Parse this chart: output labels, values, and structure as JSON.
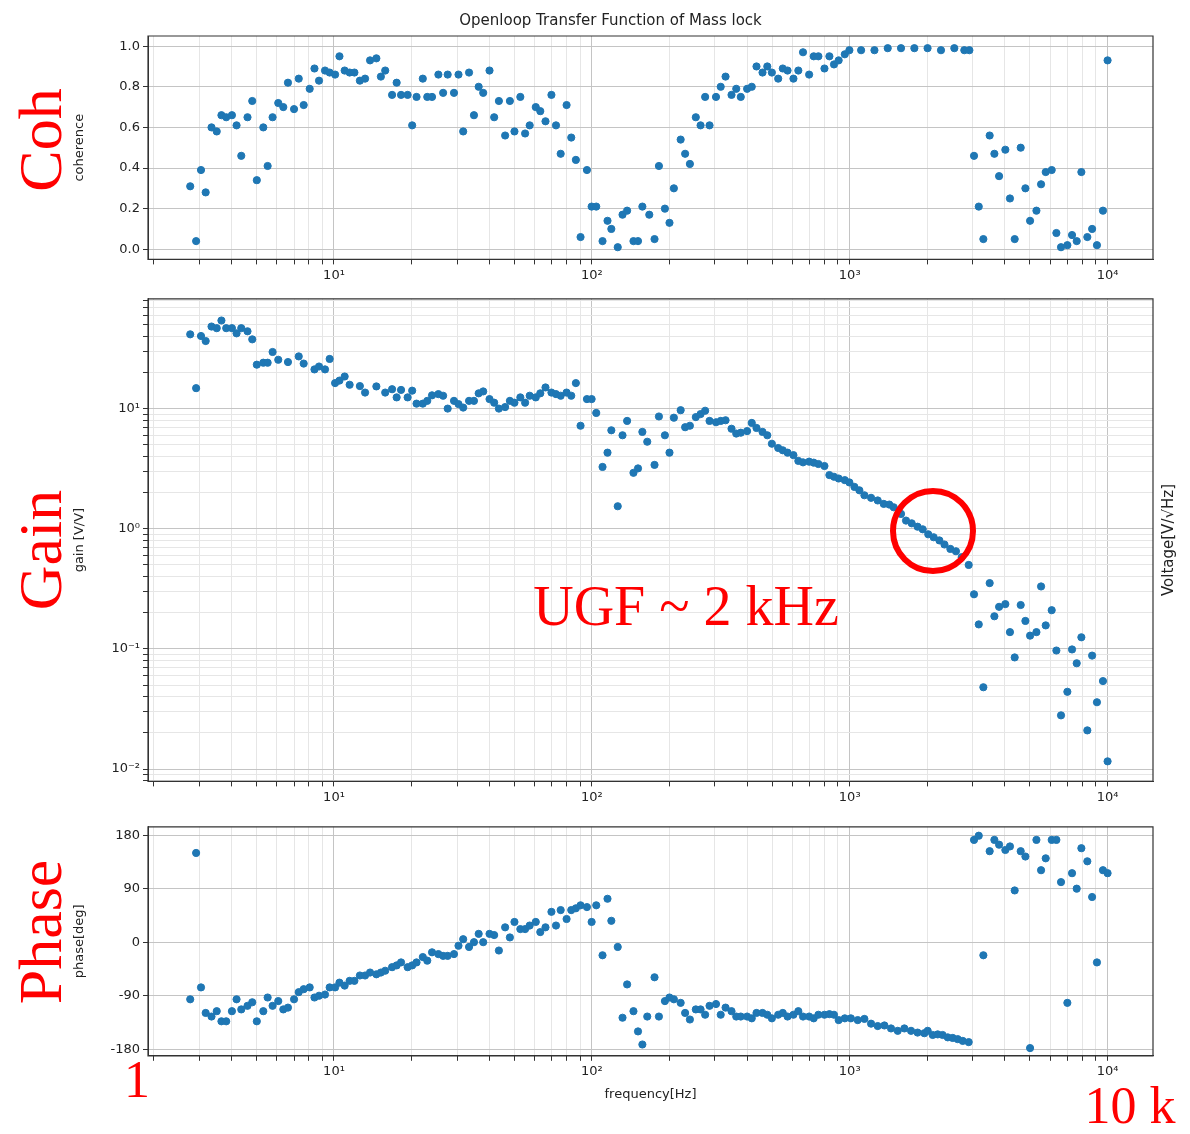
{
  "chart_data": [
    {
      "type": "scatter",
      "title": "Openloop Transfer Function of Mass lock",
      "ylabel": "coherence",
      "annotations": [
        "Coh"
      ],
      "color": "#1f77b4",
      "marker": "circle",
      "log": "x",
      "grid": true,
      "x": [
        2.77,
        2.92,
        3.05,
        3.18,
        3.35,
        3.51,
        3.66,
        3.82,
        4.02,
        4.19,
        4.37,
        4.62,
        4.82,
        5.02,
        5.32,
        5.53,
        5.78,
        6.08,
        6.36,
        6.63,
        7.0,
        7.3,
        7.63,
        8.05,
        8.4,
        8.75,
        9.23,
        9.62,
        10.1,
        10.5,
        11.0,
        11.5,
        12.0,
        12.6,
        13.2,
        13.8,
        14.6,
        15.2,
        15.8,
        16.8,
        17.5,
        18.2,
        19.3,
        20.1,
        20.9,
        22.1,
        23.0,
        24.0,
        25.4,
        26.5,
        27.6,
        29.2,
        30.4,
        31.7,
        33.4,
        34.9,
        36.4,
        37.9,
        40.1,
        41.8,
        43.6,
        46.1,
        48.1,
        50.1,
        52.8,
        55.1,
        57.4,
        60.6,
        63.1,
        66.1,
        69.7,
        72.6,
        75.7,
        79.8,
        83.2,
        86.7,
        90.4,
        95.7,
        99.8,
        104,
        110,
        115,
        119,
        126,
        131.5,
        137,
        145,
        151,
        157,
        167,
        175,
        182,
        192,
        200,
        208,
        221,
        230,
        240,
        253,
        264,
        275,
        286,
        303,
        316,
        330,
        348,
        363,
        378,
        400,
        417,
        435,
        459,
        479,
        499,
        528,
        550,
        574,
        605,
        632,
        659,
        696,
        725,
        756,
        798,
        834,
        869,
        906,
        957,
        997,
        1107,
        1247,
        1404,
        1581,
        1781,
        2004,
        2259,
        2545,
        2782,
        2911,
        3034,
        3165,
        3298,
        3489,
        3639,
        3795,
        4013,
        4182,
        4363,
        4603,
        4800,
        5005,
        5297,
        5521,
        5755,
        6071,
        6330,
        6598,
        6982,
        7280,
        7590,
        7912,
        8345,
        8710,
        9094,
        9595,
        10000
      ],
      "values": [
        0.31,
        0.04,
        0.39,
        0.28,
        0.6,
        0.58,
        0.66,
        0.65,
        0.66,
        0.61,
        0.46,
        0.65,
        0.73,
        0.34,
        0.6,
        0.41,
        0.65,
        0.72,
        0.7,
        0.82,
        0.69,
        0.84,
        0.71,
        0.79,
        0.89,
        0.83,
        0.88,
        0.87,
        0.86,
        0.95,
        0.88,
        0.87,
        0.87,
        0.83,
        0.84,
        0.93,
        0.94,
        0.85,
        0.88,
        0.76,
        0.82,
        0.76,
        0.76,
        0.61,
        0.75,
        0.84,
        0.75,
        0.75,
        0.86,
        0.77,
        0.86,
        0.77,
        0.86,
        0.58,
        0.87,
        0.66,
        0.8,
        0.77,
        0.88,
        0.65,
        0.73,
        0.56,
        0.73,
        0.58,
        0.75,
        0.57,
        0.61,
        0.7,
        0.68,
        0.63,
        0.76,
        0.61,
        0.47,
        0.71,
        0.55,
        0.44,
        0.06,
        0.39,
        0.21,
        0.21,
        0.04,
        0.14,
        0.1,
        0.01,
        0.17,
        0.19,
        0.04,
        0.04,
        0.21,
        0.17,
        0.05,
        0.41,
        0.2,
        0.13,
        0.3,
        0.54,
        0.47,
        0.42,
        0.65,
        0.61,
        0.75,
        0.61,
        0.75,
        0.8,
        0.85,
        0.76,
        0.79,
        0.75,
        0.79,
        0.8,
        0.9,
        0.87,
        0.9,
        0.87,
        0.84,
        0.89,
        0.88,
        0.84,
        0.88,
        0.97,
        0.86,
        0.95,
        0.95,
        0.89,
        0.95,
        0.91,
        0.93,
        0.96,
        0.98,
        0.98,
        0.98,
        0.99,
        0.99,
        0.99,
        0.99,
        0.98,
        0.99,
        0.98,
        0.98,
        0.46,
        0.21,
        0.05,
        0.56,
        0.47,
        0.36,
        0.49,
        0.25,
        0.05,
        0.5,
        0.3,
        0.14,
        0.19,
        0.32,
        0.38,
        0.39,
        0.08,
        0.01,
        0.02,
        0.07,
        0.04,
        0.38,
        0.06,
        0.1,
        0.02,
        0.19,
        0.93
      ],
      "xlim": [
        1.9,
        15000
      ],
      "xticks": [
        {
          "value": 2,
          "label": null
        },
        {
          "value": 3,
          "label": null
        },
        {
          "value": 4,
          "label": null
        },
        {
          "value": 5,
          "label": null
        },
        {
          "value": 6,
          "label": null
        },
        {
          "value": 7,
          "label": null
        },
        {
          "value": 8,
          "label": null
        },
        {
          "value": 9,
          "label": null
        },
        {
          "value": 10,
          "label": "10¹"
        },
        {
          "value": 20,
          "label": null
        },
        {
          "value": 30,
          "label": null
        },
        {
          "value": 40,
          "label": null
        },
        {
          "value": 50,
          "label": null
        },
        {
          "value": 60,
          "label": null
        },
        {
          "value": 70,
          "label": null
        },
        {
          "value": 80,
          "label": null
        },
        {
          "value": 90,
          "label": null
        },
        {
          "value": 100,
          "label": "10²"
        },
        {
          "value": 200,
          "label": null
        },
        {
          "value": 300,
          "label": null
        },
        {
          "value": 400,
          "label": null
        },
        {
          "value": 500,
          "label": null
        },
        {
          "value": 600,
          "label": null
        },
        {
          "value": 700,
          "label": null
        },
        {
          "value": 800,
          "label": null
        },
        {
          "value": 900,
          "label": null
        },
        {
          "value": 1000,
          "label": "10³"
        },
        {
          "value": 2000,
          "label": null
        },
        {
          "value": 3000,
          "label": null
        },
        {
          "value": 4000,
          "label": null
        },
        {
          "value": 5000,
          "label": null
        },
        {
          "value": 6000,
          "label": null
        },
        {
          "value": 7000,
          "label": null
        },
        {
          "value": 8000,
          "label": null
        },
        {
          "value": 9000,
          "label": null
        },
        {
          "value": 10000,
          "label": "10⁴"
        }
      ],
      "ylim": [
        -0.05,
        1.05
      ],
      "yticks": [
        {
          "value": 0,
          "label": "0.0"
        },
        0.2,
        0.4,
        0.6,
        0.8,
        {
          "value": 1,
          "label": "1.0"
        }
      ]
    },
    {
      "type": "scatter",
      "ylabel": "gain [V/V]",
      "y2label": "Voltage[V/√Hz]",
      "annotations": [
        "Gain",
        "UGF ~ 2 kHz"
      ],
      "color": "#1f77b4",
      "marker": "circle",
      "log": "xy",
      "grid": true,
      "x": [
        2.77,
        2.92,
        3.05,
        3.18,
        3.35,
        3.51,
        3.66,
        3.82,
        4.02,
        4.19,
        4.37,
        4.62,
        4.82,
        5.02,
        5.32,
        5.53,
        5.78,
        6.08,
        6.63,
        7.3,
        7.63,
        8.4,
        8.75,
        9.23,
        9.62,
        10.1,
        10.5,
        11.0,
        11.5,
        12.6,
        13.2,
        14.6,
        15.8,
        16.8,
        17.5,
        18.2,
        19.3,
        20.1,
        20.9,
        22.1,
        23.0,
        24.0,
        25.4,
        26.5,
        27.6,
        29.2,
        30.4,
        31.7,
        33.4,
        34.9,
        36.4,
        37.9,
        40.1,
        41.8,
        43.6,
        46.1,
        48.1,
        50.1,
        52.8,
        55.1,
        57.4,
        60.6,
        63.1,
        66.1,
        69.7,
        72.6,
        75.7,
        79.8,
        83.2,
        86.7,
        90.4,
        95.7,
        99.8,
        104,
        110,
        115,
        119,
        126,
        131.5,
        137,
        145,
        151,
        157,
        164,
        175,
        182,
        192,
        200,
        208,
        221,
        230,
        240,
        253,
        264,
        275,
        286,
        303,
        316,
        330,
        348,
        363,
        378,
        400,
        417,
        435,
        459,
        479,
        499,
        528,
        550,
        574,
        605,
        632,
        659,
        696,
        725,
        756,
        798,
        834,
        869,
        906,
        957,
        997,
        1043,
        1090,
        1140,
        1210,
        1284,
        1355,
        1424,
        1481,
        1581,
        1653,
        1739,
        1833,
        1919,
        2016,
        2116,
        2227,
        2330,
        2456,
        2582,
        2718,
        2893,
        3034,
        3165,
        3298,
        3489,
        3639,
        3795,
        4013,
        4182,
        4363,
        4603,
        4800,
        5005,
        5297,
        5521,
        5755,
        6071,
        6330,
        6598,
        6982,
        7280,
        7590,
        7912,
        8345,
        8710,
        9094,
        9595,
        10000
      ],
      "values": [
        41.5,
        14.8,
        40.2,
        36.5,
        48.2,
        46.7,
        54.1,
        46.7,
        46.7,
        42.3,
        46.7,
        44.0,
        37.7,
        23.2,
        24.1,
        24.1,
        29.6,
        25.5,
        24.4,
        27.2,
        23.7,
        21.2,
        22.4,
        21.2,
        25.9,
        16.3,
        17.1,
        18.5,
        15.8,
        15.4,
        13.6,
        15.3,
        13.6,
        14.5,
        12.4,
        14.3,
        12.4,
        14.1,
        11.0,
        11.0,
        11.6,
        12.9,
        13.2,
        12.8,
        10.0,
        11.6,
        10.9,
        10.2,
        11.6,
        11.6,
        13.4,
        13.9,
        12.0,
        11.2,
        10.0,
        10.3,
        11.6,
        11.2,
        12.4,
        11.2,
        12.8,
        12.4,
        13.4,
        15.0,
        13.6,
        13.2,
        12.8,
        13.6,
        12.8,
        16.3,
        7.2,
        12.0,
        12.0,
        9.2,
        3.27,
        4.3,
        6.6,
        1.54,
        6.0,
        7.9,
        2.92,
        3.18,
        6.4,
        5.3,
        3.4,
        8.6,
        6.0,
        4.3,
        8.4,
        9.7,
        7.0,
        7.2,
        8.5,
        9.0,
        9.6,
        7.9,
        7.7,
        7.9,
        8.0,
        6.8,
        6.2,
        6.3,
        6.5,
        7.6,
        6.9,
        6.4,
        6.0,
        5.1,
        4.7,
        4.5,
        4.3,
        4.1,
        3.67,
        3.57,
        3.62,
        3.55,
        3.46,
        3.33,
        2.8,
        2.71,
        2.62,
        2.54,
        2.43,
        2.23,
        2.09,
        1.9,
        1.81,
        1.72,
        1.61,
        1.59,
        1.51,
        1.33,
        1.17,
        1.11,
        1.04,
        0.99,
        0.9,
        0.85,
        0.8,
        0.74,
        0.68,
        0.65,
        0.58,
        0.5,
        0.285,
        0.16,
        0.048,
        0.353,
        0.187,
        0.224,
        0.236,
        0.138,
        0.085,
        0.232,
        0.171,
        0.129,
        0.138,
        0.331,
        0.157,
        0.21,
        0.097,
        0.028,
        0.044,
        0.099,
        0.076,
        0.125,
        0.021,
        0.088,
        0.036,
        0.054,
        0.0116
      ],
      "xlim": [
        1.9,
        15000
      ],
      "xticks": [
        {
          "value": 2,
          "label": null
        },
        {
          "value": 3,
          "label": null
        },
        {
          "value": 4,
          "label": null
        },
        {
          "value": 5,
          "label": null
        },
        {
          "value": 6,
          "label": null
        },
        {
          "value": 7,
          "label": null
        },
        {
          "value": 8,
          "label": null
        },
        {
          "value": 9,
          "label": null
        },
        {
          "value": 10,
          "label": "10¹"
        },
        {
          "value": 20,
          "label": null
        },
        {
          "value": 30,
          "label": null
        },
        {
          "value": 40,
          "label": null
        },
        {
          "value": 50,
          "label": null
        },
        {
          "value": 60,
          "label": null
        },
        {
          "value": 70,
          "label": null
        },
        {
          "value": 80,
          "label": null
        },
        {
          "value": 90,
          "label": null
        },
        {
          "value": 100,
          "label": "10²"
        },
        {
          "value": 200,
          "label": null
        },
        {
          "value": 300,
          "label": null
        },
        {
          "value": 400,
          "label": null
        },
        {
          "value": 500,
          "label": null
        },
        {
          "value": 600,
          "label": null
        },
        {
          "value": 700,
          "label": null
        },
        {
          "value": 800,
          "label": null
        },
        {
          "value": 900,
          "label": null
        },
        {
          "value": 1000,
          "label": "10³"
        },
        {
          "value": 2000,
          "label": null
        },
        {
          "value": 3000,
          "label": null
        },
        {
          "value": 4000,
          "label": null
        },
        {
          "value": 5000,
          "label": null
        },
        {
          "value": 6000,
          "label": null
        },
        {
          "value": 7000,
          "label": null
        },
        {
          "value": 8000,
          "label": null
        },
        {
          "value": 9000,
          "label": null
        },
        {
          "value": 10000,
          "label": "10⁴"
        }
      ],
      "ylim": [
        0.0079,
        82
      ],
      "yticks": [
        {
          "value": 0.008,
          "label": null
        },
        {
          "value": 0.009,
          "label": null
        },
        {
          "value": 0.01,
          "label": "10⁻²"
        },
        {
          "value": 0.02,
          "label": null
        },
        {
          "value": 0.03,
          "label": null
        },
        {
          "value": 0.04,
          "label": null
        },
        {
          "value": 0.05,
          "label": null
        },
        {
          "value": 0.06,
          "label": null
        },
        {
          "value": 0.07,
          "label": null
        },
        {
          "value": 0.08,
          "label": null
        },
        {
          "value": 0.09,
          "label": null
        },
        {
          "value": 0.1,
          "label": "10⁻¹"
        },
        {
          "value": 0.2,
          "label": null
        },
        {
          "value": 0.3,
          "label": null
        },
        {
          "value": 0.4,
          "label": null
        },
        {
          "value": 0.5,
          "label": null
        },
        {
          "value": 0.6,
          "label": null
        },
        {
          "value": 0.7,
          "label": null
        },
        {
          "value": 0.8,
          "label": null
        },
        {
          "value": 0.9,
          "label": null
        },
        {
          "value": 1,
          "label": "10⁰"
        },
        {
          "value": 2,
          "label": null
        },
        {
          "value": 3,
          "label": null
        },
        {
          "value": 4,
          "label": null
        },
        {
          "value": 5,
          "label": null
        },
        {
          "value": 6,
          "label": null
        },
        {
          "value": 7,
          "label": null
        },
        {
          "value": 8,
          "label": null
        },
        {
          "value": 9,
          "label": null
        },
        {
          "value": 10,
          "label": "10¹"
        },
        {
          "value": 20,
          "label": null
        },
        {
          "value": 30,
          "label": null
        },
        {
          "value": 40,
          "label": null
        },
        {
          "value": 50,
          "label": null
        },
        {
          "value": 60,
          "label": null
        },
        {
          "value": 70,
          "label": null
        },
        {
          "value": 80,
          "label": null
        }
      ]
    },
    {
      "type": "scatter",
      "xlabel": "frequency[Hz]",
      "ylabel": "phase[deg]",
      "annotations": [
        "Phase",
        "1",
        "10 k"
      ],
      "color": "#1f77b4",
      "marker": "circle",
      "log": "x",
      "grid": true,
      "x": [
        2.77,
        2.92,
        3.05,
        3.18,
        3.35,
        3.51,
        3.66,
        3.82,
        4.02,
        4.19,
        4.37,
        4.62,
        4.82,
        5.02,
        5.32,
        5.53,
        5.78,
        6.08,
        6.36,
        6.63,
        7.0,
        7.3,
        7.63,
        8.05,
        8.4,
        8.75,
        9.23,
        9.62,
        10.1,
        10.5,
        11.0,
        11.5,
        12.0,
        12.6,
        13.2,
        13.8,
        14.6,
        15.2,
        15.8,
        16.8,
        17.5,
        18.2,
        19.3,
        20.1,
        20.9,
        22.1,
        23.0,
        24.0,
        25.4,
        26.5,
        27.6,
        29.2,
        30.4,
        31.7,
        33.4,
        34.9,
        36.4,
        37.9,
        40.1,
        41.8,
        43.6,
        46.1,
        48.1,
        50.1,
        52.8,
        55.1,
        57.4,
        60.6,
        63.1,
        66.1,
        69.7,
        72.6,
        75.7,
        79.8,
        83.2,
        86.7,
        90.4,
        95.7,
        99.8,
        104,
        110,
        115,
        119,
        126,
        131.5,
        137,
        145,
        151,
        157,
        164,
        175,
        182,
        192,
        200,
        208,
        221,
        230,
        240,
        253,
        264,
        275,
        286,
        303,
        316,
        330,
        348,
        363,
        378,
        400,
        417,
        435,
        459,
        479,
        499,
        528,
        550,
        574,
        605,
        632,
        659,
        696,
        725,
        756,
        798,
        834,
        869,
        906,
        957,
        1010,
        1074,
        1140,
        1210,
        1284,
        1363,
        1446,
        1535,
        1629,
        1729,
        1833,
        1947,
        2006,
        2098,
        2194,
        2292,
        2399,
        2508,
        2623,
        2743,
        2893,
        3034,
        3165,
        3298,
        3489,
        3639,
        3795,
        4013,
        4182,
        4363,
        4603,
        4800,
        5005,
        5297,
        5521,
        5755,
        6071,
        6330,
        6598,
        6982,
        7280,
        7590,
        7912,
        8345,
        8710,
        9094,
        9595,
        10000
      ],
      "values": [
        -96,
        150,
        -76,
        -119,
        -125,
        -116,
        -133,
        -133,
        -116,
        -96,
        -113,
        -107,
        -101,
        -133,
        -116,
        -93,
        -107,
        -99,
        -113,
        -110,
        -96,
        -84,
        -79,
        -76,
        -93,
        -90,
        -88,
        -76,
        -76,
        -68,
        -73,
        -65,
        -65,
        -56,
        -56,
        -51,
        -54,
        -51,
        -48,
        -42,
        -39,
        -34,
        -42,
        -39,
        -34,
        -25,
        -31,
        -17,
        -20,
        -23,
        -23,
        -20,
        -6,
        5,
        -8,
        0,
        14,
        0,
        14,
        12,
        -14,
        25,
        8,
        34,
        22,
        22,
        28,
        34,
        17,
        25,
        51,
        28,
        54,
        39,
        54,
        57,
        62,
        59,
        34,
        62,
        -22,
        73,
        36,
        -8,
        -127,
        -71,
        -116,
        -150,
        -172,
        -125,
        -59,
        -125,
        -99,
        -93,
        -96,
        -102,
        -119,
        -130,
        -113,
        -113,
        -122,
        -107,
        -104,
        -122,
        -110,
        -116,
        -125,
        -125,
        -125,
        -128,
        -119,
        -119,
        -122,
        -128,
        -122,
        -119,
        -125,
        -122,
        -116,
        -125,
        -125,
        -128,
        -122,
        -122,
        -121,
        -122,
        -131,
        -128,
        -128,
        -131,
        -129,
        -137,
        -141,
        -140,
        -145,
        -149,
        -145,
        -149,
        -152,
        -153,
        -149,
        -156,
        -155,
        -156,
        -160,
        -161,
        -163,
        -166,
        -168,
        172,
        179,
        -22,
        153,
        172,
        164,
        155,
        161,
        87,
        153,
        144,
        -178,
        172,
        121,
        141,
        172,
        172,
        101,
        -102,
        116,
        90,
        158,
        136,
        76,
        -34,
        121,
        116
      ],
      "xlim": [
        1.9,
        15000
      ],
      "xticks": [
        {
          "value": 2,
          "label": null
        },
        {
          "value": 3,
          "label": null
        },
        {
          "value": 4,
          "label": null
        },
        {
          "value": 5,
          "label": null
        },
        {
          "value": 6,
          "label": null
        },
        {
          "value": 7,
          "label": null
        },
        {
          "value": 8,
          "label": null
        },
        {
          "value": 9,
          "label": null
        },
        {
          "value": 10,
          "label": "10¹"
        },
        {
          "value": 20,
          "label": null
        },
        {
          "value": 30,
          "label": null
        },
        {
          "value": 40,
          "label": null
        },
        {
          "value": 50,
          "label": null
        },
        {
          "value": 60,
          "label": null
        },
        {
          "value": 70,
          "label": null
        },
        {
          "value": 80,
          "label": null
        },
        {
          "value": 90,
          "label": null
        },
        {
          "value": 100,
          "label": "10²"
        },
        {
          "value": 200,
          "label": null
        },
        {
          "value": 300,
          "label": null
        },
        {
          "value": 400,
          "label": null
        },
        {
          "value": 500,
          "label": null
        },
        {
          "value": 600,
          "label": null
        },
        {
          "value": 700,
          "label": null
        },
        {
          "value": 800,
          "label": null
        },
        {
          "value": 900,
          "label": null
        },
        {
          "value": 1000,
          "label": "10³"
        },
        {
          "value": 2000,
          "label": null
        },
        {
          "value": 3000,
          "label": null
        },
        {
          "value": 4000,
          "label": null
        },
        {
          "value": 5000,
          "label": null
        },
        {
          "value": 6000,
          "label": null
        },
        {
          "value": 7000,
          "label": null
        },
        {
          "value": 8000,
          "label": null
        },
        {
          "value": 9000,
          "label": null
        },
        {
          "value": 10000,
          "label": "10⁴"
        }
      ],
      "ylim": [
        -191,
        194
      ],
      "yticks": [
        -180,
        -90,
        0,
        90,
        180
      ]
    }
  ]
}
